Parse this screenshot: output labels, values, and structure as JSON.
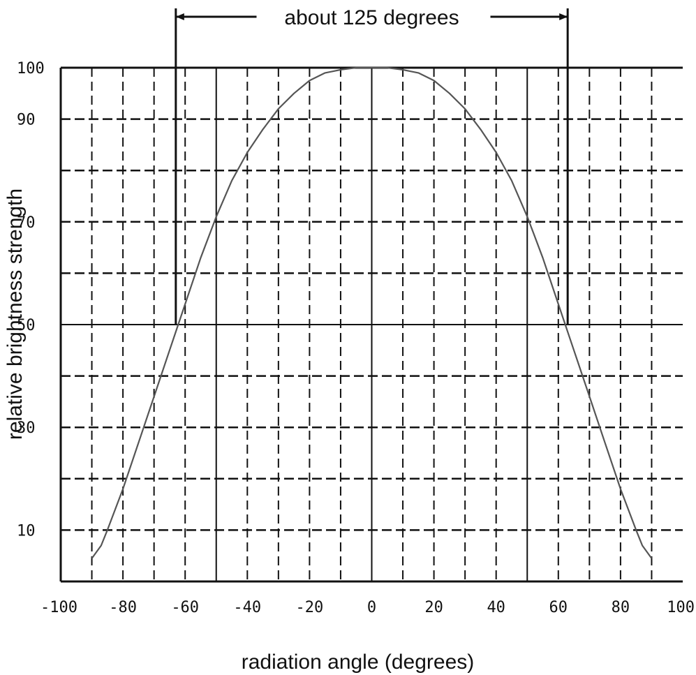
{
  "chart_data": {
    "type": "line",
    "title": "",
    "xlabel": "radiation angle (degrees)",
    "ylabel": "relative brightness strength",
    "xlim": [
      -100,
      100
    ],
    "ylim": [
      0,
      100
    ],
    "x_ticks": [
      -100,
      -80,
      -60,
      -40,
      -20,
      0,
      20,
      40,
      60,
      80,
      100
    ],
    "x_tick_labels": [
      "-100",
      "-80",
      "-60",
      "-40",
      "-20",
      "0",
      "20",
      "40",
      "60",
      "80",
      "100"
    ],
    "y_ticks": [
      10,
      30,
      50,
      70,
      90,
      100
    ],
    "y_tick_labels": [
      "10",
      "30",
      "50",
      "70",
      "90",
      "100"
    ],
    "grid": true,
    "legend": "none",
    "series": [
      {
        "x": [
          -90,
          -87,
          -85,
          -80,
          -75,
          -70,
          -65,
          -60,
          -55,
          -50,
          -45,
          -40,
          -35,
          -30,
          -25,
          -20,
          -15,
          -10,
          -5,
          0,
          5,
          10,
          15,
          20,
          25,
          30,
          35,
          40,
          45,
          50,
          55,
          60,
          65,
          70,
          75,
          80,
          85,
          87,
          90
        ],
        "y": [
          4.5,
          7,
          10,
          18,
          27,
          36,
          45,
          54,
          63,
          71,
          78,
          83.5,
          88,
          92,
          95,
          97.5,
          99,
          99.6,
          100,
          100,
          100,
          99.6,
          99,
          97.5,
          95,
          92,
          88,
          83.5,
          78,
          71,
          63,
          54,
          45,
          36,
          27,
          18,
          10,
          7,
          4.5
        ],
        "color": "#555555"
      }
    ],
    "annotations": [
      {
        "text": "about 125 degrees",
        "x_from": -63,
        "x_to": 63,
        "at_y": 50
      }
    ]
  }
}
